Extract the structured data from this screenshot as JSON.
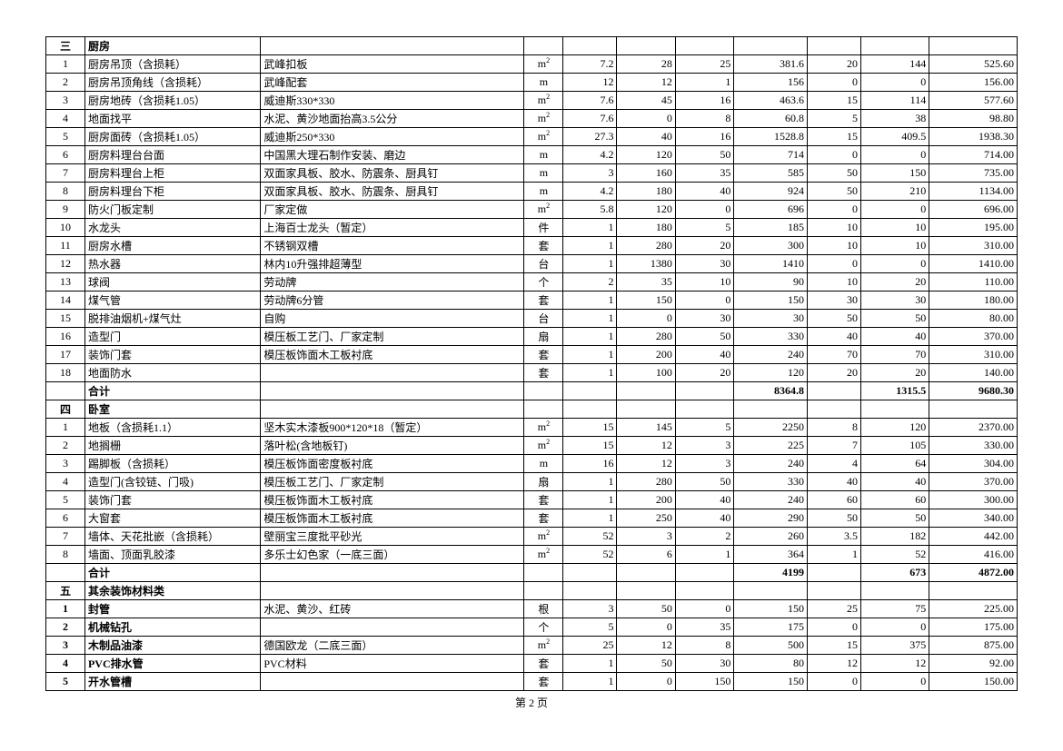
{
  "footer": "第 2 页",
  "sections": [
    {
      "num": "三",
      "title": "厨房",
      "bold": true,
      "rows": [
        {
          "n": "1",
          "name": "厨房吊顶（含损耗）",
          "spec": "武峰扣板",
          "unit": "m2",
          "q": "7.2",
          "p1": "28",
          "p2": "25",
          "s1": "381.6",
          "p3": "20",
          "s2": "144",
          "s3": "525.60"
        },
        {
          "n": "2",
          "name": "厨房吊顶角线（含损耗）",
          "spec": "武峰配套",
          "unit": "m",
          "q": "12",
          "p1": "12",
          "p2": "1",
          "s1": "156",
          "p3": "0",
          "s2": "0",
          "s3": "156.00"
        },
        {
          "n": "3",
          "name": "厨房地砖（含损耗1.05）",
          "spec": "威迪斯330*330",
          "unit": "m2",
          "q": "7.6",
          "p1": "45",
          "p2": "16",
          "s1": "463.6",
          "p3": "15",
          "s2": "114",
          "s3": "577.60"
        },
        {
          "n": "4",
          "name": "地面找平",
          "spec": "水泥、黄沙地面抬高3.5公分",
          "unit": "m2",
          "q": "7.6",
          "p1": "0",
          "p2": "8",
          "s1": "60.8",
          "p3": "5",
          "s2": "38",
          "s3": "98.80"
        },
        {
          "n": "5",
          "name": "厨房面砖（含损耗1.05）",
          "spec": "威迪斯250*330",
          "unit": "m2",
          "q": "27.3",
          "p1": "40",
          "p2": "16",
          "s1": "1528.8",
          "p3": "15",
          "s2": "409.5",
          "s3": "1938.30"
        },
        {
          "n": "6",
          "name": "厨房料理台台面",
          "spec": "中国黑大理石制作安装、磨边",
          "unit": "m",
          "q": "4.2",
          "p1": "120",
          "p2": "50",
          "s1": "714",
          "p3": "0",
          "s2": "0",
          "s3": "714.00"
        },
        {
          "n": "7",
          "name": "厨房料理台上柜",
          "spec": "双面家具板、胶水、防震条、厨具钉",
          "unit": "m",
          "q": "3",
          "p1": "160",
          "p2": "35",
          "s1": "585",
          "p3": "50",
          "s2": "150",
          "s3": "735.00"
        },
        {
          "n": "8",
          "name": "厨房料理台下柜",
          "spec": "双面家具板、胶水、防震条、厨具钉",
          "unit": "m",
          "q": "4.2",
          "p1": "180",
          "p2": "40",
          "s1": "924",
          "p3": "50",
          "s2": "210",
          "s3": "1134.00"
        },
        {
          "n": "9",
          "name": "防火门板定制",
          "spec": "厂家定做",
          "unit": "m2",
          "q": "5.8",
          "p1": "120",
          "p2": "0",
          "s1": "696",
          "p3": "0",
          "s2": "0",
          "s3": "696.00"
        },
        {
          "n": "10",
          "name": "水龙头",
          "spec": "上海百士龙头（暂定）",
          "unit": "件",
          "q": "1",
          "p1": "180",
          "p2": "5",
          "s1": "185",
          "p3": "10",
          "s2": "10",
          "s3": "195.00"
        },
        {
          "n": "11",
          "name": "厨房水槽",
          "spec": "不锈钢双槽",
          "unit": "套",
          "q": "1",
          "p1": "280",
          "p2": "20",
          "s1": "300",
          "p3": "10",
          "s2": "10",
          "s3": "310.00"
        },
        {
          "n": "12",
          "name": "热水器",
          "spec": "林内10升强排超薄型",
          "unit": "台",
          "q": "1",
          "p1": "1380",
          "p2": "30",
          "s1": "1410",
          "p3": "0",
          "s2": "0",
          "s3": "1410.00"
        },
        {
          "n": "13",
          "name": "球阀",
          "spec": "劳动牌",
          "unit": "个",
          "q": "2",
          "p1": "35",
          "p2": "10",
          "s1": "90",
          "p3": "10",
          "s2": "20",
          "s3": "110.00"
        },
        {
          "n": "14",
          "name": "煤气管",
          "spec": "劳动牌6分管",
          "unit": "套",
          "q": "1",
          "p1": "150",
          "p2": "0",
          "s1": "150",
          "p3": "30",
          "s2": "30",
          "s3": "180.00"
        },
        {
          "n": "15",
          "name": "脱排油烟机+煤气灶",
          "spec": "自购",
          "unit": "台",
          "q": "1",
          "p1": "0",
          "p2": "30",
          "s1": "30",
          "p3": "50",
          "s2": "50",
          "s3": "80.00"
        },
        {
          "n": "16",
          "name": "造型门",
          "spec": "模压板工艺门、厂家定制",
          "unit": "扇",
          "q": "1",
          "p1": "280",
          "p2": "50",
          "s1": "330",
          "p3": "40",
          "s2": "40",
          "s3": "370.00"
        },
        {
          "n": "17",
          "name": "装饰门套",
          "spec": "模压板饰面木工板衬底",
          "unit": "套",
          "q": "1",
          "p1": "200",
          "p2": "40",
          "s1": "240",
          "p3": "70",
          "s2": "70",
          "s3": "310.00"
        },
        {
          "n": "18",
          "name": "地面防水",
          "spec": "",
          "unit": "套",
          "q": "1",
          "p1": "100",
          "p2": "20",
          "s1": "120",
          "p3": "20",
          "s2": "20",
          "s3": "140.00"
        }
      ],
      "total": {
        "label": "合计",
        "s1": "8364.8",
        "s2": "1315.5",
        "s3": "9680.30"
      }
    },
    {
      "num": "四",
      "title": "卧室",
      "bold": true,
      "rows": [
        {
          "n": "1",
          "name": "地板（含损耗1.1）",
          "spec": "坚木实木漆板900*120*18（暂定）",
          "unit": "m2",
          "q": "15",
          "p1": "145",
          "p2": "5",
          "s1": "2250",
          "p3": "8",
          "s2": "120",
          "s3": "2370.00"
        },
        {
          "n": "2",
          "name": "地搁栅",
          "spec": "落叶松(含地板钉)",
          "unit": "m2",
          "q": "15",
          "p1": "12",
          "p2": "3",
          "s1": "225",
          "p3": "7",
          "s2": "105",
          "s3": "330.00"
        },
        {
          "n": "3",
          "name": "踢脚板（含损耗）",
          "spec": "模压板饰面密度板衬底",
          "unit": "m",
          "q": "16",
          "p1": "12",
          "p2": "3",
          "s1": "240",
          "p3": "4",
          "s2": "64",
          "s3": "304.00"
        },
        {
          "n": "4",
          "name": "造型门(含铰链、门吸)",
          "spec": "模压板工艺门、厂家定制",
          "unit": "扇",
          "q": "1",
          "p1": "280",
          "p2": "50",
          "s1": "330",
          "p3": "40",
          "s2": "40",
          "s3": "370.00"
        },
        {
          "n": "5",
          "name": "装饰门套",
          "spec": "模压板饰面木工板衬底",
          "unit": "套",
          "q": "1",
          "p1": "200",
          "p2": "40",
          "s1": "240",
          "p3": "60",
          "s2": "60",
          "s3": "300.00"
        },
        {
          "n": "6",
          "name": "大窗套",
          "spec": "模压板饰面木工板衬底",
          "unit": "套",
          "q": "1",
          "p1": "250",
          "p2": "40",
          "s1": "290",
          "p3": "50",
          "s2": "50",
          "s3": "340.00"
        },
        {
          "n": "7",
          "name": "墙体、天花批嵌（含损耗）",
          "spec": "壁丽宝三度批平砂光",
          "unit": "m2",
          "q": "52",
          "p1": "3",
          "p2": "2",
          "s1": "260",
          "p3": "3.5",
          "s2": "182",
          "s3": "442.00"
        },
        {
          "n": "8",
          "name": "墙面、顶面乳胶漆",
          "spec": "多乐士幻色家（一底三面）",
          "unit": "m2",
          "q": "52",
          "p1": "6",
          "p2": "1",
          "s1": "364",
          "p3": "1",
          "s2": "52",
          "s3": "416.00"
        }
      ],
      "total": {
        "label": "合计",
        "s1": "4199",
        "s2": "673",
        "s3": "4872.00"
      }
    },
    {
      "num": "五",
      "title": "其余装饰材料类",
      "bold": true,
      "boldRows": true,
      "rows": [
        {
          "n": "1",
          "name": "封管",
          "spec": "水泥、黄沙、红砖",
          "unit": "根",
          "q": "3",
          "p1": "50",
          "p2": "0",
          "s1": "150",
          "p3": "25",
          "s2": "75",
          "s3": "225.00"
        },
        {
          "n": "2",
          "name": "机械钻孔",
          "spec": "",
          "unit": "个",
          "q": "5",
          "p1": "0",
          "p2": "35",
          "s1": "175",
          "p3": "0",
          "s2": "0",
          "s3": "175.00"
        },
        {
          "n": "3",
          "name": "木制品油漆",
          "spec": "德国欧龙（二底三面）",
          "unit": "m2",
          "q": "25",
          "p1": "12",
          "p2": "8",
          "s1": "500",
          "p3": "15",
          "s2": "375",
          "s3": "875.00"
        },
        {
          "n": "4",
          "name": "PVC排水管",
          "spec": "PVC材料",
          "unit": "套",
          "q": "1",
          "p1": "50",
          "p2": "30",
          "s1": "80",
          "p3": "12",
          "s2": "12",
          "s3": "92.00"
        },
        {
          "n": "5",
          "name": "开水管槽",
          "spec": "",
          "unit": "套",
          "q": "1",
          "p1": "0",
          "p2": "150",
          "s1": "150",
          "p3": "0",
          "s2": "0",
          "s3": "150.00"
        }
      ]
    }
  ]
}
